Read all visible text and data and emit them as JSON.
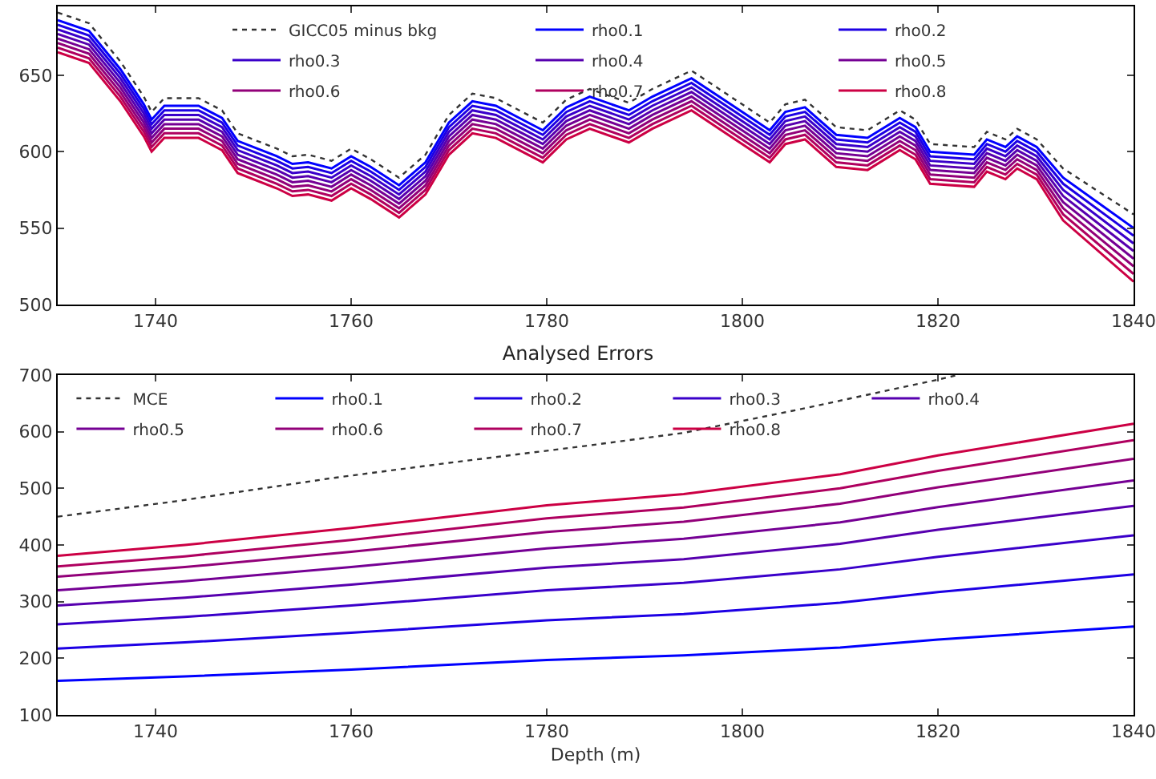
{
  "chart_data": [
    {
      "type": "line",
      "xlim": [
        1730,
        1840
      ],
      "xticks": [
        1740,
        1760,
        1780,
        1800,
        1820,
        1840
      ],
      "ylim": [
        500,
        695
      ],
      "yticks": [
        500,
        550,
        600,
        650
      ],
      "legend": "top right",
      "grid": false,
      "series": [
        {
          "name": "GICC05 minus bkg",
          "color": "#333333",
          "line_style": "dotted",
          "x": [
            1730,
            1733.2,
            1736.4,
            1738.8,
            1739.6,
            1740.9,
            1744.4,
            1746.8,
            1748.4,
            1752.4,
            1754,
            1755.6,
            1758,
            1760,
            1762,
            1764.9,
            1767.6,
            1770,
            1772.4,
            1774.8,
            1777.2,
            1779.6,
            1782,
            1784.4,
            1788.4,
            1790.8,
            1794.8,
            1798.8,
            1802.8,
            1804.4,
            1806.4,
            1809.6,
            1812.8,
            1816.1,
            1817.7,
            1819.2,
            1823.7,
            1825,
            1826.9,
            1828.1,
            1830.1,
            1832.8,
            1840
          ],
          "values": [
            691,
            684,
            659,
            636,
            626,
            635,
            635,
            627,
            612,
            602,
            597,
            598,
            594,
            602,
            595,
            583,
            598,
            624,
            638,
            635,
            627,
            619,
            634,
            641,
            632,
            641,
            653,
            636,
            619,
            631,
            634,
            616,
            614,
            627,
            621,
            605,
            603,
            613,
            608,
            615,
            608,
            589,
            559
          ]
        },
        {
          "name": "rho0.1",
          "color": "#0000ff",
          "line_style": "solid",
          "x": [
            1730,
            1733.2,
            1736.4,
            1738.8,
            1739.6,
            1740.9,
            1744.4,
            1746.8,
            1748.4,
            1752.4,
            1754,
            1755.6,
            1758,
            1760,
            1762,
            1764.9,
            1767.6,
            1770,
            1772.4,
            1774.8,
            1777.2,
            1779.6,
            1782,
            1784.4,
            1788.4,
            1790.8,
            1794.8,
            1798.8,
            1802.8,
            1804.4,
            1806.4,
            1809.6,
            1812.8,
            1816.1,
            1817.7,
            1819.2,
            1823.7,
            1825,
            1826.9,
            1828.1,
            1830.1,
            1832.8,
            1840
          ],
          "values": [
            686,
            679,
            654,
            631,
            621,
            630,
            630,
            622,
            607,
            597,
            592,
            593,
            589,
            597,
            590,
            578,
            593,
            619,
            633,
            630,
            622,
            614,
            629,
            636,
            627,
            636,
            648,
            631,
            614,
            626,
            629,
            611,
            609,
            622,
            616,
            600,
            598,
            608,
            603,
            610,
            603,
            583,
            550
          ]
        },
        {
          "name": "rho0.2",
          "color": "#1d00e4",
          "line_style": "solid",
          "x": [
            1730,
            1733.2,
            1736.4,
            1738.8,
            1739.6,
            1740.9,
            1744.4,
            1746.8,
            1748.4,
            1752.4,
            1754,
            1755.6,
            1758,
            1760,
            1762,
            1764.9,
            1767.6,
            1770,
            1772.4,
            1774.8,
            1777.2,
            1779.6,
            1782,
            1784.4,
            1788.4,
            1790.8,
            1794.8,
            1798.8,
            1802.8,
            1804.4,
            1806.4,
            1809.6,
            1812.8,
            1816.1,
            1817.7,
            1819.2,
            1823.7,
            1825,
            1826.9,
            1828.1,
            1830.1,
            1832.8,
            1840
          ],
          "values": [
            683,
            676,
            651,
            628,
            618,
            627,
            627,
            619,
            604,
            594,
            589,
            590,
            586,
            594,
            587,
            575,
            590,
            616,
            630,
            627,
            619,
            611,
            626,
            633,
            624,
            633,
            645,
            628,
            611,
            623,
            626,
            608,
            606,
            619,
            613,
            597,
            595,
            605,
            600,
            607,
            600,
            579,
            545
          ]
        },
        {
          "name": "rho0.3",
          "color": "#3a00ca",
          "line_style": "solid",
          "x": [
            1730,
            1733.2,
            1736.4,
            1738.8,
            1739.6,
            1740.9,
            1744.4,
            1746.8,
            1748.4,
            1752.4,
            1754,
            1755.6,
            1758,
            1760,
            1762,
            1764.9,
            1767.6,
            1770,
            1772.4,
            1774.8,
            1777.2,
            1779.6,
            1782,
            1784.4,
            1788.4,
            1790.8,
            1794.8,
            1798.8,
            1802.8,
            1804.4,
            1806.4,
            1809.6,
            1812.8,
            1816.1,
            1817.7,
            1819.2,
            1823.7,
            1825,
            1826.9,
            1828.1,
            1830.1,
            1832.8,
            1840
          ],
          "values": [
            680,
            673,
            648,
            625,
            615,
            624,
            624,
            616,
            601,
            591,
            586,
            587,
            583,
            591,
            584,
            572,
            587,
            613,
            627,
            624,
            616,
            608,
            623,
            630,
            621,
            630,
            642,
            625,
            608,
            620,
            623,
            605,
            603,
            616,
            610,
            594,
            592,
            602,
            597,
            604,
            597,
            575,
            540
          ]
        },
        {
          "name": "rho0.4",
          "color": "#5700af",
          "line_style": "solid",
          "x": [
            1730,
            1733.2,
            1736.4,
            1738.8,
            1739.6,
            1740.9,
            1744.4,
            1746.8,
            1748.4,
            1752.4,
            1754,
            1755.6,
            1758,
            1760,
            1762,
            1764.9,
            1767.6,
            1770,
            1772.4,
            1774.8,
            1777.2,
            1779.6,
            1782,
            1784.4,
            1788.4,
            1790.8,
            1794.8,
            1798.8,
            1802.8,
            1804.4,
            1806.4,
            1809.6,
            1812.8,
            1816.1,
            1817.7,
            1819.2,
            1823.7,
            1825,
            1826.9,
            1828.1,
            1830.1,
            1832.8,
            1840
          ],
          "values": [
            677,
            670,
            645,
            622,
            612,
            621,
            621,
            613,
            598,
            588,
            583,
            584,
            580,
            588,
            581,
            569,
            584,
            610,
            624,
            621,
            613,
            605,
            620,
            627,
            618,
            627,
            639,
            622,
            605,
            617,
            620,
            602,
            600,
            613,
            607,
            591,
            589,
            599,
            594,
            601,
            594,
            571,
            535
          ]
        },
        {
          "name": "rho0.5",
          "color": "#750094",
          "line_style": "solid",
          "x": [
            1730,
            1733.2,
            1736.4,
            1738.8,
            1739.6,
            1740.9,
            1744.4,
            1746.8,
            1748.4,
            1752.4,
            1754,
            1755.6,
            1758,
            1760,
            1762,
            1764.9,
            1767.6,
            1770,
            1772.4,
            1774.8,
            1777.2,
            1779.6,
            1782,
            1784.4,
            1788.4,
            1790.8,
            1794.8,
            1798.8,
            1802.8,
            1804.4,
            1806.4,
            1809.6,
            1812.8,
            1816.1,
            1817.7,
            1819.2,
            1823.7,
            1825,
            1826.9,
            1828.1,
            1830.1,
            1832.8,
            1840
          ],
          "values": [
            674,
            667,
            642,
            619,
            609,
            618,
            618,
            610,
            595,
            585,
            580,
            581,
            577,
            585,
            578,
            566,
            581,
            607,
            621,
            618,
            610,
            602,
            617,
            624,
            615,
            624,
            636,
            619,
            602,
            614,
            617,
            599,
            597,
            610,
            604,
            588,
            586,
            596,
            591,
            598,
            591,
            567,
            530
          ]
        },
        {
          "name": "rho0.6",
          "color": "#920079",
          "line_style": "solid",
          "x": [
            1730,
            1733.2,
            1736.4,
            1738.8,
            1739.6,
            1740.9,
            1744.4,
            1746.8,
            1748.4,
            1752.4,
            1754,
            1755.6,
            1758,
            1760,
            1762,
            1764.9,
            1767.6,
            1770,
            1772.4,
            1774.8,
            1777.2,
            1779.6,
            1782,
            1784.4,
            1788.4,
            1790.8,
            1794.8,
            1798.8,
            1802.8,
            1804.4,
            1806.4,
            1809.6,
            1812.8,
            1816.1,
            1817.7,
            1819.2,
            1823.7,
            1825,
            1826.9,
            1828.1,
            1830.1,
            1832.8,
            1840
          ],
          "values": [
            671,
            664,
            639,
            616,
            606,
            615,
            615,
            607,
            592,
            582,
            577,
            578,
            574,
            582,
            575,
            563,
            578,
            604,
            618,
            615,
            607,
            599,
            614,
            621,
            612,
            621,
            633,
            616,
            599,
            611,
            614,
            596,
            594,
            607,
            601,
            585,
            583,
            593,
            588,
            595,
            588,
            563,
            525
          ]
        },
        {
          "name": "rho0.7",
          "color": "#af005f",
          "line_style": "solid",
          "x": [
            1730,
            1733.2,
            1736.4,
            1738.8,
            1739.6,
            1740.9,
            1744.4,
            1746.8,
            1748.4,
            1752.4,
            1754,
            1755.6,
            1758,
            1760,
            1762,
            1764.9,
            1767.6,
            1770,
            1772.4,
            1774.8,
            1777.2,
            1779.6,
            1782,
            1784.4,
            1788.4,
            1790.8,
            1794.8,
            1798.8,
            1802.8,
            1804.4,
            1806.4,
            1809.6,
            1812.8,
            1816.1,
            1817.7,
            1819.2,
            1823.7,
            1825,
            1826.9,
            1828.1,
            1830.1,
            1832.8,
            1840
          ],
          "values": [
            668,
            661,
            636,
            613,
            603,
            612,
            612,
            604,
            589,
            579,
            574,
            575,
            571,
            579,
            572,
            560,
            575,
            601,
            615,
            612,
            604,
            596,
            611,
            618,
            609,
            618,
            630,
            613,
            596,
            608,
            611,
            593,
            591,
            604,
            598,
            582,
            580,
            590,
            585,
            592,
            585,
            559,
            520
          ]
        },
        {
          "name": "rho0.8",
          "color": "#cc0044",
          "line_style": "solid",
          "x": [
            1730,
            1733.2,
            1736.4,
            1738.8,
            1739.6,
            1740.9,
            1744.4,
            1746.8,
            1748.4,
            1752.4,
            1754,
            1755.6,
            1758,
            1760,
            1762,
            1764.9,
            1767.6,
            1770,
            1772.4,
            1774.8,
            1777.2,
            1779.6,
            1782,
            1784.4,
            1788.4,
            1790.8,
            1794.8,
            1798.8,
            1802.8,
            1804.4,
            1806.4,
            1809.6,
            1812.8,
            1816.1,
            1817.7,
            1819.2,
            1823.7,
            1825,
            1826.9,
            1828.1,
            1830.1,
            1832.8,
            1840
          ],
          "values": [
            665,
            658,
            633,
            610,
            600,
            609,
            609,
            601,
            586,
            576,
            571,
            572,
            568,
            576,
            569,
            557,
            572,
            598,
            612,
            609,
            601,
            593,
            608,
            615,
            606,
            615,
            627,
            610,
            593,
            605,
            608,
            590,
            588,
            601,
            595,
            579,
            577,
            587,
            582,
            589,
            582,
            555,
            515
          ]
        }
      ]
    },
    {
      "type": "line",
      "title": "Analysed Errors",
      "xlabel": "Depth (m)",
      "xlim": [
        1730,
        1840
      ],
      "xticks": [
        1740,
        1760,
        1780,
        1800,
        1820,
        1840
      ],
      "ylim": [
        100,
        700
      ],
      "yticks": [
        100,
        200,
        300,
        400,
        500,
        600,
        700
      ],
      "legend": "top left",
      "grid": false,
      "series": [
        {
          "name": "MCE",
          "color": "#333333",
          "line_style": "dotted",
          "x": [
            1730,
            1742,
            1758,
            1770,
            1784,
            1794,
            1806,
            1820,
            1822
          ],
          "values": [
            450,
            477,
            518,
            545,
            575,
            598,
            640,
            692,
            700
          ]
        },
        {
          "name": "rho0.1",
          "color": "#0000ff",
          "line_style": "solid",
          "x": [
            1730,
            1743,
            1760,
            1780,
            1794,
            1810,
            1820,
            1840
          ],
          "values": [
            160,
            168,
            180,
            197,
            205,
            219,
            233,
            256
          ]
        },
        {
          "name": "rho0.2",
          "color": "#1d00e4",
          "line_style": "solid",
          "x": [
            1730,
            1743,
            1760,
            1780,
            1794,
            1810,
            1820,
            1840
          ],
          "values": [
            217,
            228,
            245,
            267,
            278,
            298,
            317,
            348
          ]
        },
        {
          "name": "rho0.3",
          "color": "#3a00ca",
          "line_style": "solid",
          "x": [
            1730,
            1743,
            1760,
            1780,
            1794,
            1810,
            1820,
            1840
          ],
          "values": [
            260,
            273,
            293,
            320,
            333,
            357,
            379,
            417
          ]
        },
        {
          "name": "rho0.4",
          "color": "#5700af",
          "line_style": "solid",
          "x": [
            1730,
            1743,
            1760,
            1780,
            1794,
            1810,
            1820,
            1840
          ],
          "values": [
            293,
            307,
            330,
            360,
            375,
            402,
            427,
            469
          ]
        },
        {
          "name": "rho0.5",
          "color": "#750094",
          "line_style": "solid",
          "x": [
            1730,
            1743,
            1760,
            1780,
            1794,
            1810,
            1820,
            1840
          ],
          "values": [
            320,
            336,
            361,
            394,
            411,
            440,
            467,
            514
          ]
        },
        {
          "name": "rho0.6",
          "color": "#920079",
          "line_style": "solid",
          "x": [
            1730,
            1743,
            1760,
            1780,
            1794,
            1810,
            1820,
            1840
          ],
          "values": [
            344,
            361,
            388,
            423,
            441,
            473,
            502,
            552
          ]
        },
        {
          "name": "rho0.7",
          "color": "#af005f",
          "line_style": "solid",
          "x": [
            1730,
            1743,
            1760,
            1780,
            1794,
            1810,
            1820,
            1840
          ],
          "values": [
            362,
            380,
            409,
            447,
            466,
            500,
            531,
            585
          ]
        },
        {
          "name": "rho0.8",
          "color": "#cc0044",
          "line_style": "solid",
          "x": [
            1730,
            1743,
            1760,
            1780,
            1794,
            1810,
            1820,
            1840
          ],
          "values": [
            381,
            400,
            430,
            470,
            490,
            525,
            558,
            614
          ]
        }
      ]
    }
  ]
}
